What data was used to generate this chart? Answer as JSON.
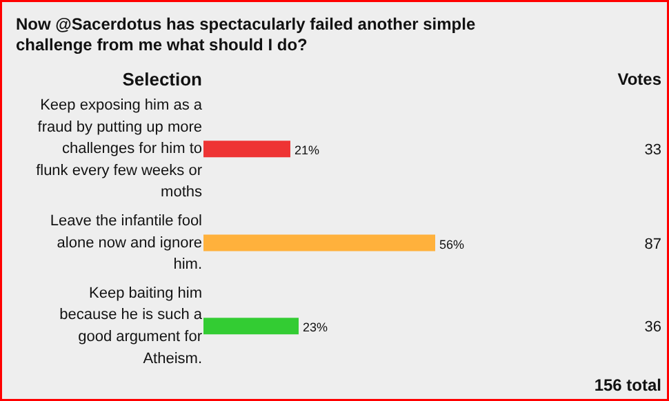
{
  "chart_data": {
    "type": "bar",
    "orientation": "horizontal",
    "title": "Now @Sacerdotus has spectacularly failed another simple challenge from me what should I do?",
    "ylabel": "Selection",
    "categories": [
      "Keep exposing him as a fraud by putting up more challenges for him to flunk every few weeks or moths",
      "Leave the infantile fool alone now and ignore him.",
      "Keep baiting him because he is such a good argument for Atheism."
    ],
    "values": [
      21,
      56,
      23
    ],
    "colors": [
      "#ee3434",
      "#ffb13c",
      "#33cc33"
    ],
    "value_labels": [
      "21%",
      "56%",
      "23%"
    ],
    "annotations": [
      "Votes",
      "33",
      "87",
      "36",
      "156 total"
    ]
  }
}
